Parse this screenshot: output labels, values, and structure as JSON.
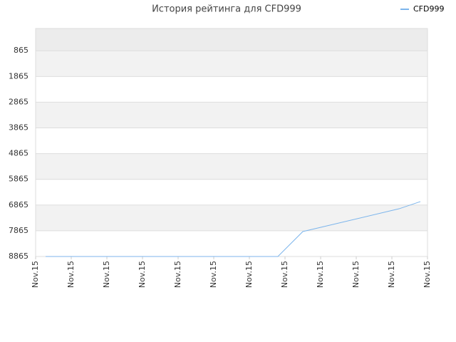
{
  "chart_data": {
    "type": "line",
    "title": "История рейтинга для CFD999",
    "x": [
      0.28,
      6.8,
      7.5,
      10.2,
      10.8
    ],
    "series": [
      {
        "name": "CFD999",
        "color": "#7cb5ec",
        "values": [
          8865,
          8865,
          7895,
          7010,
          6730
        ]
      }
    ],
    "xlim": [
      0,
      11
    ],
    "xticks": [
      {
        "value": 0,
        "label": "Nov.15"
      },
      {
        "value": 1,
        "label": "Nov.15"
      },
      {
        "value": 2,
        "label": "Nov.15"
      },
      {
        "value": 3,
        "label": "Nov.15"
      },
      {
        "value": 4,
        "label": "Nov.15"
      },
      {
        "value": 5,
        "label": "Nov.15"
      },
      {
        "value": 6,
        "label": "Nov.15"
      },
      {
        "value": 7,
        "label": "Nov.15"
      },
      {
        "value": 8,
        "label": "Nov.15"
      },
      {
        "value": 9,
        "label": "Nov.15"
      },
      {
        "value": 10,
        "label": "Nov.15"
      },
      {
        "value": 11,
        "label": "Nov.15"
      }
    ],
    "ylim": [
      8865,
      0
    ],
    "yticks": [
      865,
      1865,
      2865,
      3865,
      4865,
      5865,
      6865,
      7865,
      8865
    ],
    "grid": true,
    "legend": "top-right"
  }
}
